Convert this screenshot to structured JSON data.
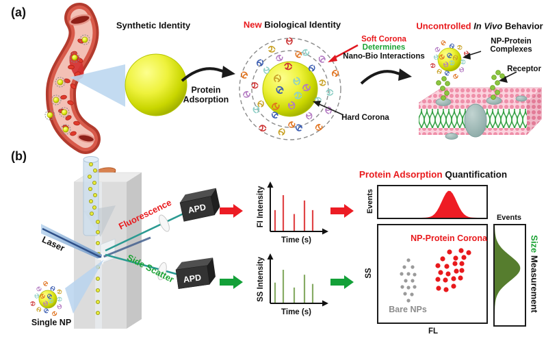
{
  "panel_a": {
    "label": "(a)",
    "synthetic_identity": "Synthetic Identity",
    "protein_adsorption_line1": "Protein",
    "protein_adsorption_line2": "Adsorption",
    "new_biological": {
      "red": "New",
      "black": " Biological Identity"
    },
    "soft_corona": {
      "red": "Soft Corona",
      "green": "Determines",
      "black": "Nano-Bio Interactions"
    },
    "hard_corona": "Hard Corona",
    "uncontrolled": {
      "red": "Uncontrolled ",
      "italic": "In Vivo",
      "black": " Behavior"
    },
    "np_protein_complexes_line1": "NP-Protein",
    "np_protein_complexes_line2": "Complexes",
    "receptor": "Receptor"
  },
  "panel_b": {
    "label": "(b)",
    "laser": "Laser",
    "fluorescence": "Fluorescence",
    "side_scatter": "Side Scatter",
    "apd": "APD",
    "single_np": "Single NP",
    "fi_plot": {
      "ylabel": "FI Intensity",
      "xlabel": "Time (s)"
    },
    "ss_plot": {
      "ylabel": "SS Intensity",
      "xlabel": "Time (s)"
    },
    "quantification": {
      "red": "Protein Adsorption",
      "black": " Quantification",
      "events": "Events"
    },
    "scatter_plot": {
      "ylabel": "SS",
      "xlabel": "FL",
      "corona": "NP-Protein Corona",
      "bare": "Bare NPs"
    },
    "size_plot": {
      "events": "Events",
      "green": "Size",
      "black": "Measurement"
    }
  },
  "colors": {
    "accent_red": "#e8191c",
    "accent_green": "#1ca335",
    "spike_red": "#e04446",
    "spike_green": "#86ab64",
    "hist_red": "#ee1c24",
    "hist_green": "#567d2e",
    "bare_gray": "#9a9a9a",
    "beam_teal": "#2b9a92",
    "laser_blue": "#2e4f88",
    "np_yellow": "#e8ef3a"
  },
  "chart_data": [
    {
      "type": "line",
      "subtype": "spike_train",
      "ylabel": "FI Intensity",
      "xlabel": "Time (s)",
      "x_rel": [
        0.17,
        0.31,
        0.5,
        0.68,
        0.82
      ],
      "values_rel": [
        0.58,
        1.0,
        0.47,
        0.85,
        0.58
      ],
      "color": "#e04446"
    },
    {
      "type": "line",
      "subtype": "spike_train",
      "ylabel": "SS Intensity",
      "xlabel": "Time (s)",
      "x_rel": [
        0.17,
        0.31,
        0.5,
        0.68,
        0.82
      ],
      "values_rel": [
        0.61,
        1.0,
        0.46,
        0.85,
        0.57
      ],
      "color": "#86ab64"
    },
    {
      "type": "area",
      "title": "Protein Adsorption Quantification",
      "ylabel": "Events",
      "peak": {
        "center": 0.655,
        "sigma": 0.068,
        "height": 0.86
      },
      "color": "#ee1c24"
    },
    {
      "type": "scatter",
      "xlabel": "FL",
      "ylabel": "SS",
      "series": [
        {
          "name": "Bare NPs",
          "color": "#9a9a9a",
          "r": 2.6,
          "points": [
            [
              44,
              51
            ],
            [
              38,
              61
            ],
            [
              50,
              61
            ],
            [
              34,
              71
            ],
            [
              44,
              71
            ],
            [
              53,
              72
            ],
            [
              40,
              81
            ],
            [
              50,
              81
            ],
            [
              35,
              90
            ],
            [
              44,
              91
            ],
            [
              53,
              90
            ],
            [
              39,
              100
            ],
            [
              49,
              101
            ],
            [
              44,
              110
            ]
          ]
        },
        {
          "name": "NP-Protein Corona",
          "color": "#e8191c",
          "r": 3.6,
          "points": [
            [
              104,
              39
            ],
            [
              121,
              37
            ],
            [
              132,
              40
            ],
            [
              94,
              49
            ],
            [
              113,
              48
            ],
            [
              125,
              47
            ],
            [
              87,
              59
            ],
            [
              100,
              60
            ],
            [
              112,
              56
            ],
            [
              122,
              56
            ],
            [
              91,
              69
            ],
            [
              102,
              71
            ],
            [
              114,
              67
            ],
            [
              122,
              66
            ],
            [
              87,
              79
            ],
            [
              98,
              80
            ],
            [
              110,
              78
            ],
            [
              120,
              77
            ],
            [
              88,
              92
            ],
            [
              99,
              94
            ],
            [
              110,
              89
            ]
          ]
        }
      ]
    },
    {
      "type": "area",
      "orientation": "vertical",
      "title": "Size Measurement",
      "ylabel": "Events",
      "peak": {
        "center": 0.43,
        "sigma": 0.125,
        "height": 0.85
      },
      "color": "#567d2e"
    }
  ]
}
